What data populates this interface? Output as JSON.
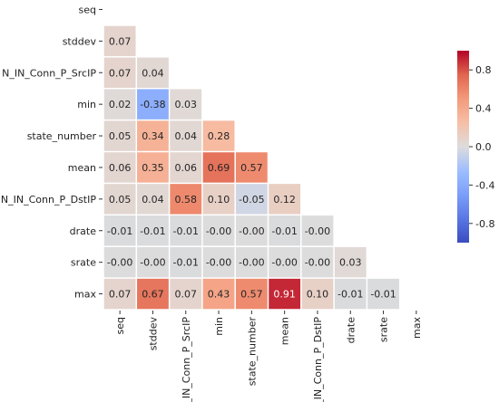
{
  "chart_data": {
    "type": "heatmap",
    "title": "",
    "xlabel": "",
    "ylabel": "",
    "mask": "upper-triangle-including-diagonal",
    "labels": [
      "seq",
      "stddev",
      "N_IN_Conn_P_SrcIP",
      "min",
      "state_number",
      "mean",
      "N_IN_Conn_P_DstIP",
      "drate",
      "srate",
      "max"
    ],
    "rows": [
      [],
      [
        "0.07"
      ],
      [
        "0.07",
        "0.04"
      ],
      [
        "0.02",
        "-0.38",
        "0.03"
      ],
      [
        "0.05",
        "0.34",
        "0.04",
        "0.28"
      ],
      [
        "0.06",
        "0.35",
        "0.06",
        "0.69",
        "0.57"
      ],
      [
        "0.05",
        "0.04",
        "0.58",
        "0.10",
        "-0.05",
        "0.12"
      ],
      [
        "-0.01",
        "-0.01",
        "-0.01",
        "-0.00",
        "-0.00",
        "-0.01",
        "-0.00"
      ],
      [
        "-0.00",
        "-0.00",
        "-0.01",
        "-0.00",
        "-0.00",
        "-0.00",
        "-0.00",
        "0.03"
      ],
      [
        "0.07",
        "0.67",
        "0.07",
        "0.43",
        "0.57",
        "0.91",
        "0.10",
        "-0.01",
        "-0.01"
      ]
    ],
    "colorbar": {
      "colormap": "coolwarm",
      "vmin": -1,
      "vmax": 1,
      "ticks": [
        "0.8",
        "0.4",
        "0.0",
        "-0.4",
        "-0.8"
      ]
    }
  }
}
